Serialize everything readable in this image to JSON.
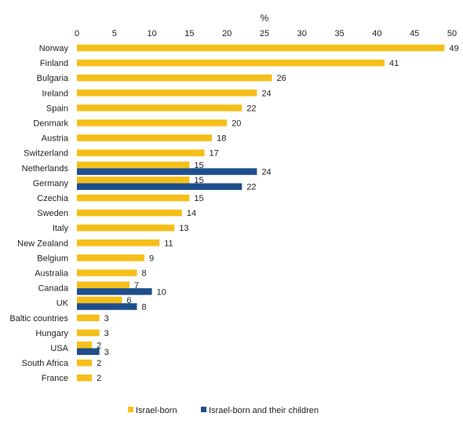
{
  "chart_data": {
    "type": "bar",
    "orientation": "horizontal",
    "axis_unit": "%",
    "xlim": [
      0,
      50
    ],
    "x_ticks": [
      0,
      5,
      10,
      15,
      20,
      25,
      30,
      35,
      40,
      45,
      50
    ],
    "x_axis_position": "top",
    "grid": false,
    "legend_position": "bottom",
    "categories": [
      "Norway",
      "Finland",
      "Bulgaria",
      "Ireland",
      "Spain",
      "Denmark",
      "Austria",
      "Switzerland",
      "Netherlands",
      "Germany",
      "Czechia",
      "Sweden",
      "Italy",
      "New Zealand",
      "Belgium",
      "Australia",
      "Canada",
      "UK",
      "Baltic countries",
      "Hungary",
      "USA",
      "South Africa",
      "France"
    ],
    "series": [
      {
        "name": "Israel-born",
        "color": "#F5BF1A",
        "values": [
          49,
          41,
          26,
          24,
          22,
          20,
          18,
          17,
          15,
          15,
          15,
          14,
          13,
          11,
          9,
          8,
          7,
          6,
          3,
          3,
          2,
          2,
          2
        ]
      },
      {
        "name": "Israel-born and their children",
        "color": "#1F4E8C",
        "values": [
          null,
          null,
          null,
          null,
          null,
          null,
          null,
          null,
          24,
          22,
          null,
          null,
          null,
          null,
          null,
          null,
          10,
          8,
          null,
          null,
          3,
          null,
          null
        ]
      }
    ]
  }
}
